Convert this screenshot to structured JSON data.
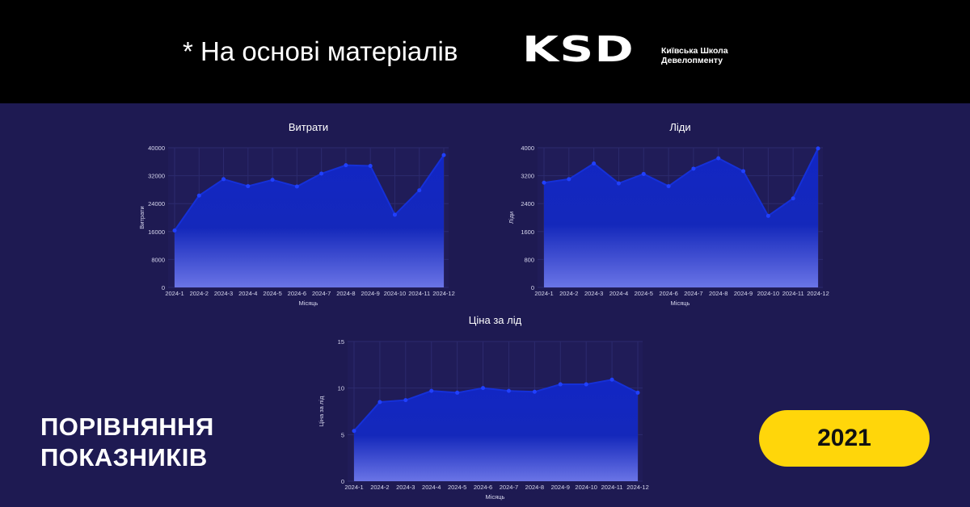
{
  "header": {
    "based_on": "* На основі матеріалів",
    "logo_mark": "KSD",
    "logo_line1": "Київська Школа",
    "logo_line2": "Девелопменту"
  },
  "colors": {
    "background": "#1e1a52",
    "header_bg": "#000000",
    "line": "#1530d8",
    "fill_top": "#1226c4",
    "fill_bottom": "#6a74e6",
    "grid": "#2c2a6e",
    "plot_bg": "#201c58",
    "pill": "#ffd60a"
  },
  "footer": {
    "title_line1": "ПОРІВНЯННЯ",
    "title_line2": "ПОКАЗНИКІВ",
    "year": "2021"
  },
  "chart_data": [
    {
      "type": "area",
      "title": "Витрати",
      "xlabel": "Місяць",
      "ylabel": "Витрати",
      "categories": [
        "2024-1",
        "2024-2",
        "2024-3",
        "2024-4",
        "2024-5",
        "2024-6",
        "2024-7",
        "2024-8",
        "2024-9",
        "2024-10",
        "2024-11",
        "2024-12"
      ],
      "values": [
        16300,
        26300,
        31000,
        29000,
        30800,
        28900,
        32600,
        35000,
        34800,
        20800,
        27800,
        37900
      ],
      "yticks": [
        "0",
        "8000",
        "16000",
        "24000",
        "32000",
        "40000"
      ],
      "ylim": [
        0,
        40000
      ],
      "grid": true
    },
    {
      "type": "area",
      "title": "Ліди",
      "xlabel": "Місяць",
      "ylabel": "Ліди",
      "categories": [
        "2024-1",
        "2024-2",
        "2024-3",
        "2024-4",
        "2024-5",
        "2024-6",
        "2024-7",
        "2024-8",
        "2024-9",
        "2024-10",
        "2024-11",
        "2024-12"
      ],
      "values": [
        3000,
        3100,
        3550,
        2980,
        3250,
        2900,
        3400,
        3700,
        3330,
        2050,
        2550,
        3980
      ],
      "yticks": [
        "0",
        "800",
        "1600",
        "2400",
        "3200",
        "4000"
      ],
      "ylim": [
        0,
        4000
      ],
      "grid": true
    },
    {
      "type": "area",
      "title": "Ціна за лід",
      "xlabel": "Місяць",
      "ylabel": "Ціна за лід",
      "categories": [
        "2024-1",
        "2024-2",
        "2024-3",
        "2024-4",
        "2024-5",
        "2024-6",
        "2024-7",
        "2024-8",
        "2024-9",
        "2024-10",
        "2024-11",
        "2024-12"
      ],
      "values": [
        5.4,
        8.5,
        8.7,
        9.7,
        9.5,
        10.0,
        9.7,
        9.6,
        10.4,
        10.4,
        10.9,
        9.5
      ],
      "yticks": [
        "0",
        "5",
        "10",
        "15"
      ],
      "ylim": [
        0,
        15
      ],
      "grid": true
    }
  ]
}
